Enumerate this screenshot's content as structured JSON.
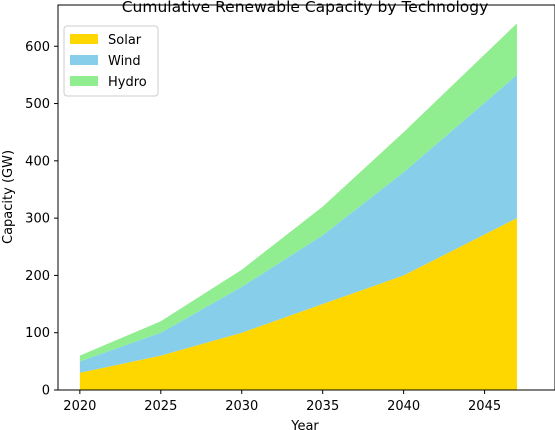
{
  "chart_data": {
    "type": "area",
    "stacked": true,
    "title": "Cumulative Renewable Capacity by Technology",
    "xlabel": "Year",
    "ylabel": "Capacity (GW)",
    "x": [
      2020,
      2025,
      2030,
      2035,
      2040,
      2047
    ],
    "series": [
      {
        "name": "Solar",
        "color": "#ffd700",
        "values": [
          30,
          60,
          100,
          150,
          200,
          300
        ]
      },
      {
        "name": "Wind",
        "color": "#87ceeb",
        "values": [
          20,
          40,
          80,
          120,
          180,
          250
        ]
      },
      {
        "name": "Hydro",
        "color": "#90ee90",
        "values": [
          10,
          20,
          30,
          50,
          70,
          90
        ]
      }
    ],
    "xlim": [
      2018.65,
      2049.35
    ],
    "ylim": [
      0,
      672
    ],
    "xticks": [
      2020,
      2025,
      2030,
      2035,
      2040,
      2045
    ],
    "yticks": [
      0,
      100,
      200,
      300,
      400,
      500,
      600
    ],
    "legend_position": "upper-left",
    "grid": false
  }
}
